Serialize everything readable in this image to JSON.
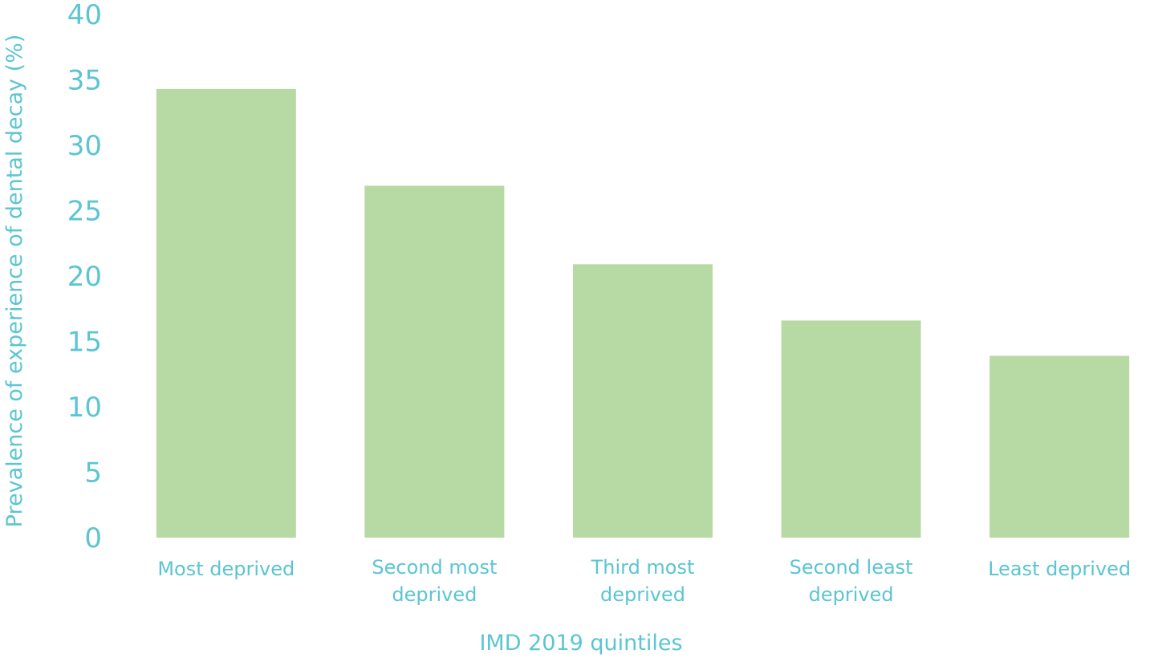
{
  "chart_data": {
    "type": "bar",
    "title": "",
    "xlabel": "IMD 2019 quintiles",
    "ylabel": "Prevalence of experience of dental decay (%)",
    "categories": [
      "Most deprived",
      "Second most deprived",
      "Third most deprived",
      "Second least deprived",
      "Least deprived"
    ],
    "category_lines": [
      [
        "Most deprived"
      ],
      [
        "Second most",
        "deprived"
      ],
      [
        "Third most",
        "deprived"
      ],
      [
        "Second least",
        "deprived"
      ],
      [
        "Least deprived"
      ]
    ],
    "values": [
      34.3,
      26.9,
      20.9,
      16.6,
      13.9
    ],
    "ylim": [
      0,
      40
    ],
    "yticks": [
      0,
      5,
      10,
      15,
      20,
      25,
      30,
      35,
      40
    ],
    "grid": false,
    "legend": "none",
    "bar_color": "#b7d9a4",
    "text_color": "#5bc5d2"
  }
}
